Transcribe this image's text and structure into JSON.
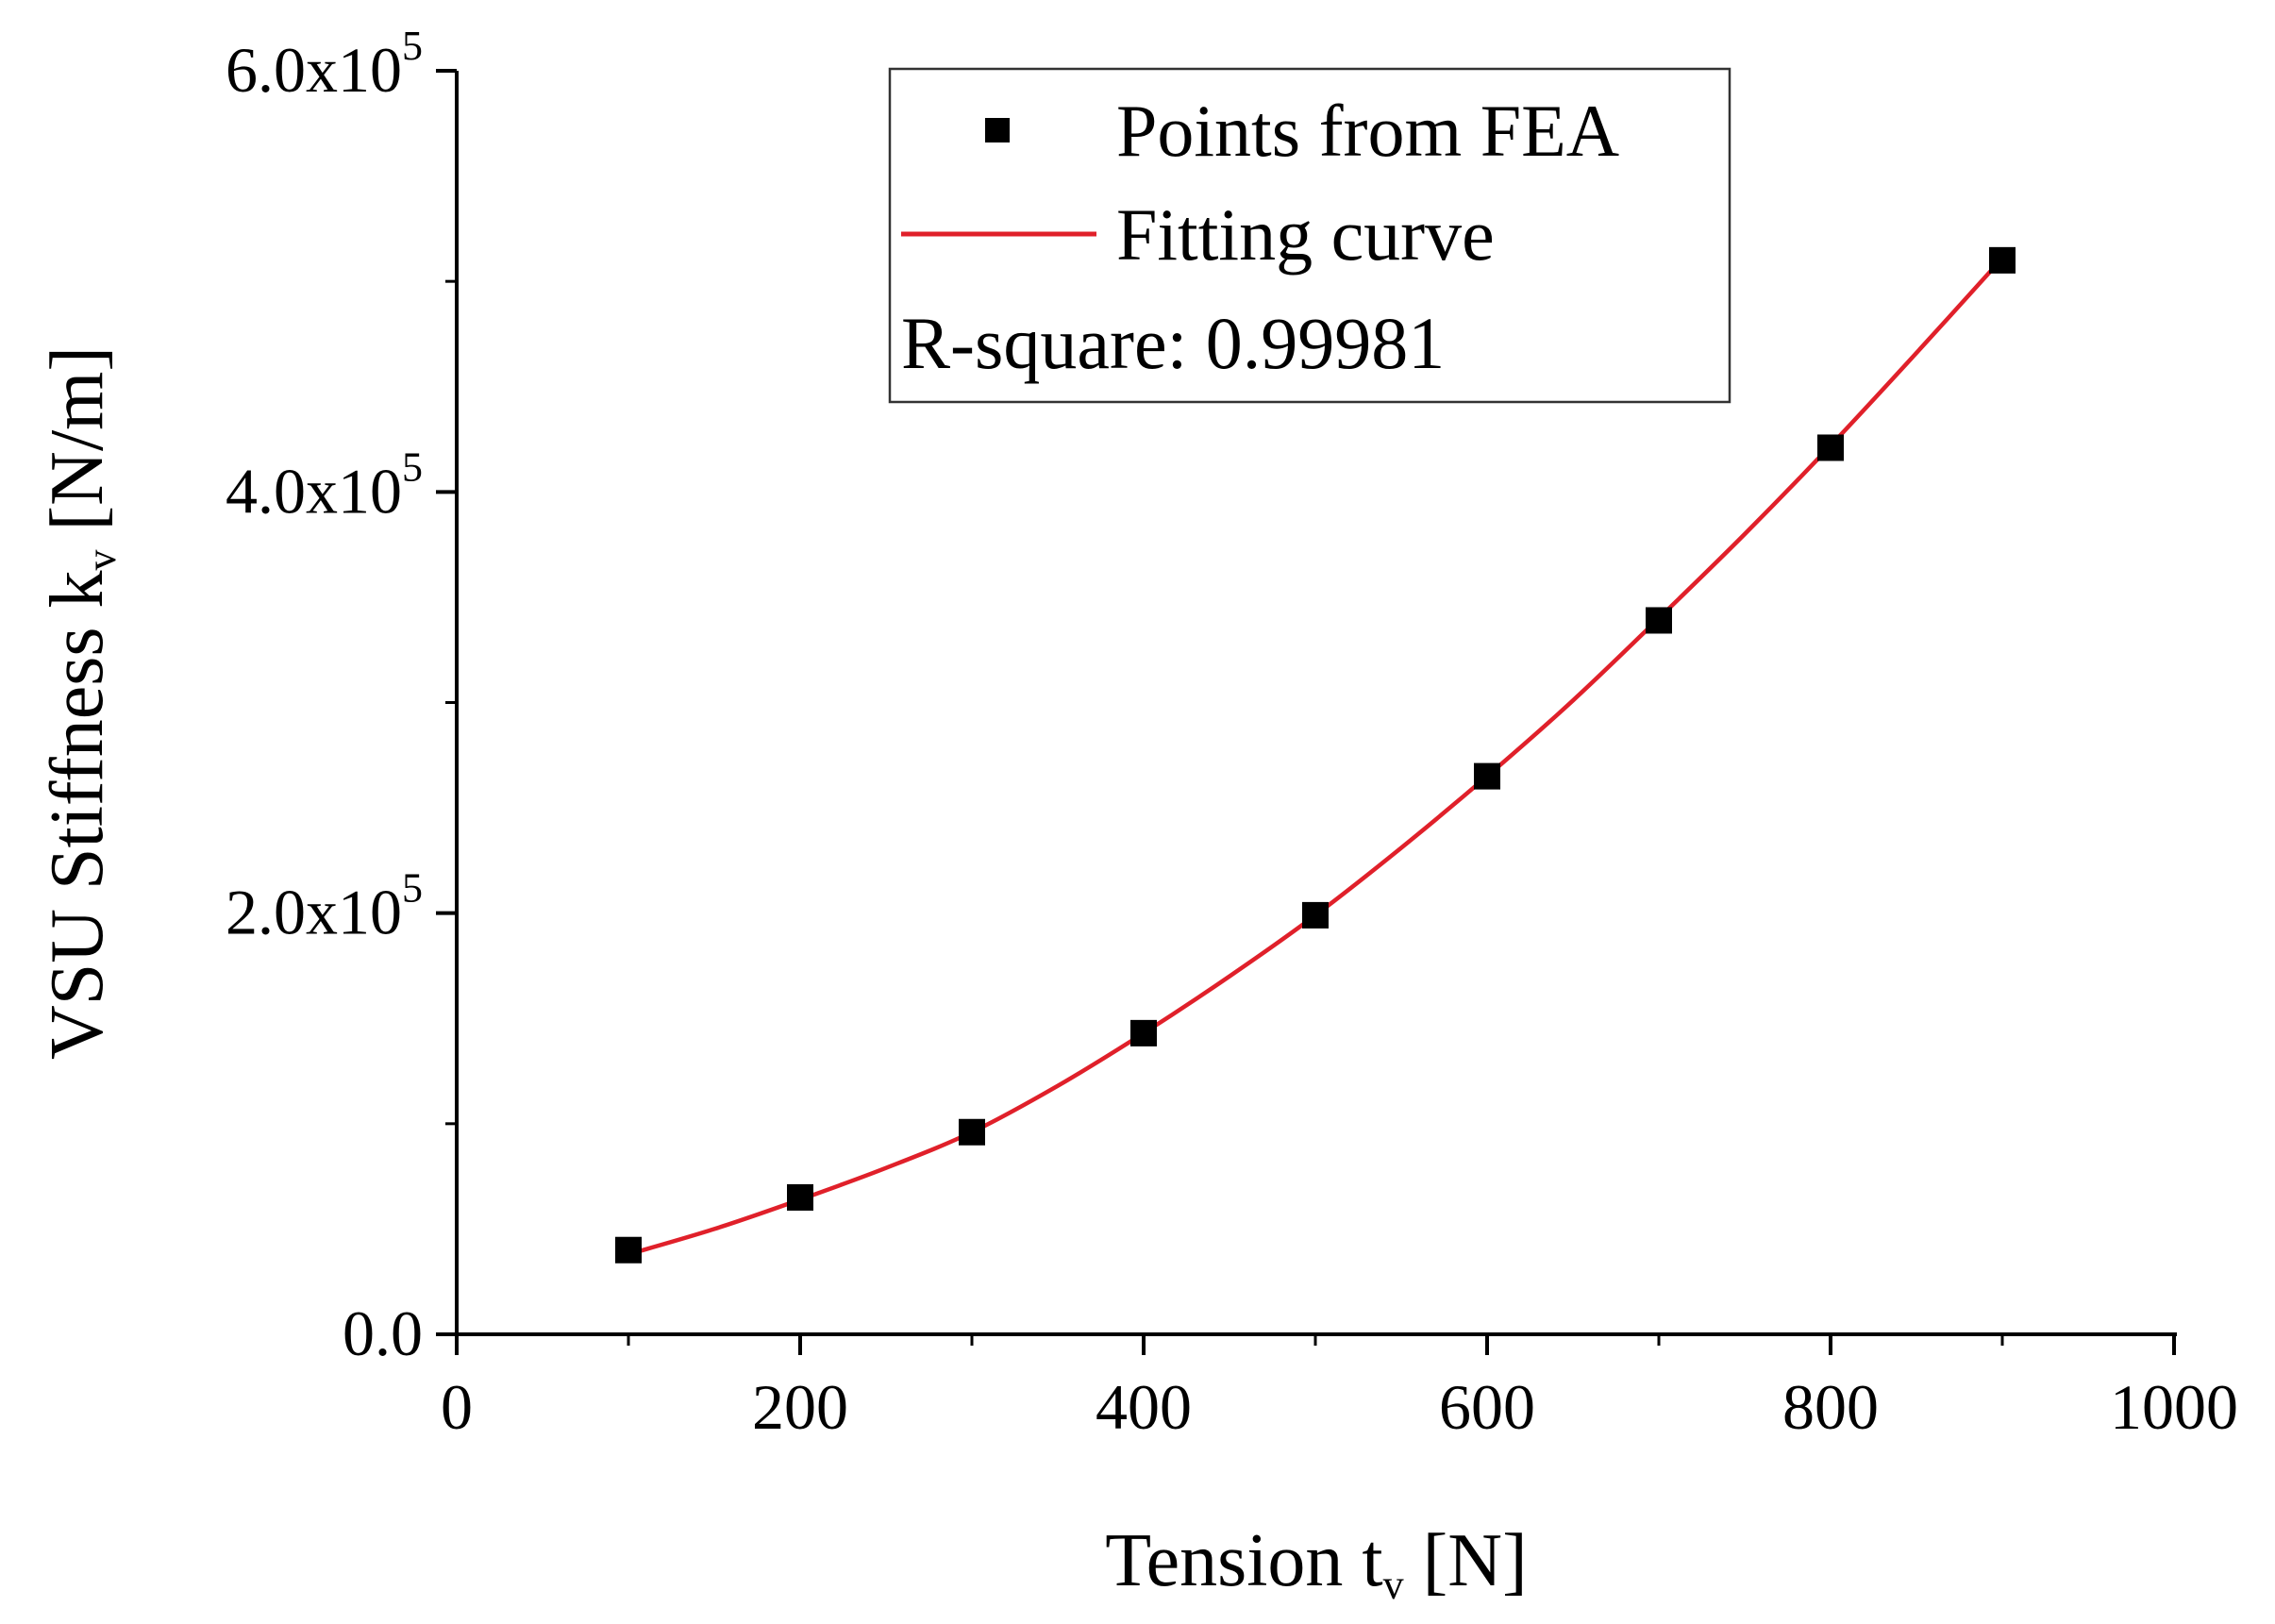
{
  "chart_data": {
    "type": "scatter",
    "xlabel": {
      "main": "Tension t",
      "sub": "v",
      "unit": " [N]"
    },
    "ylabel": {
      "main": "VSU Stiffness k",
      "sub": "v",
      "unit": " [N/m]"
    },
    "xlim": [
      0,
      1000
    ],
    "ylim": [
      0,
      600000
    ],
    "x_ticks": [
      {
        "value": 0,
        "label": "0"
      },
      {
        "value": 200,
        "label": "200"
      },
      {
        "value": 400,
        "label": "400"
      },
      {
        "value": 600,
        "label": "600"
      },
      {
        "value": 800,
        "label": "800"
      },
      {
        "value": 1000,
        "label": "1000"
      }
    ],
    "y_ticks": [
      {
        "value": 0,
        "label": "0.0"
      },
      {
        "value": 200000,
        "label": "2.0x10",
        "exp": "5"
      },
      {
        "value": 400000,
        "label": "4.0x10",
        "exp": "5"
      },
      {
        "value": 600000,
        "label": "6.0x10",
        "exp": "5"
      }
    ],
    "grid": false,
    "legend_position": "top-right",
    "series": [
      {
        "name": "Points from FEA",
        "kind": "scatter",
        "marker": "square",
        "color": "#000000",
        "x": [
          100,
          200,
          300,
          400,
          500,
          600,
          700,
          800,
          900
        ],
        "y": [
          40000,
          65000,
          96000,
          143000,
          199000,
          265000,
          339000,
          421000,
          510000
        ]
      },
      {
        "name": "Fitting curve",
        "kind": "line",
        "color": "#e0202a",
        "x": [
          100,
          150,
          200,
          250,
          300,
          350,
          400,
          450,
          500,
          550,
          600,
          650,
          700,
          750,
          800,
          850,
          900
        ],
        "y": [
          38000,
          50000,
          64000,
          79000,
          96000,
          118000,
          143000,
          170000,
          199000,
          231000,
          265000,
          301000,
          340000,
          380000,
          422000,
          466000,
          511000
        ]
      }
    ],
    "annotation": "R-square: 0.99981"
  }
}
